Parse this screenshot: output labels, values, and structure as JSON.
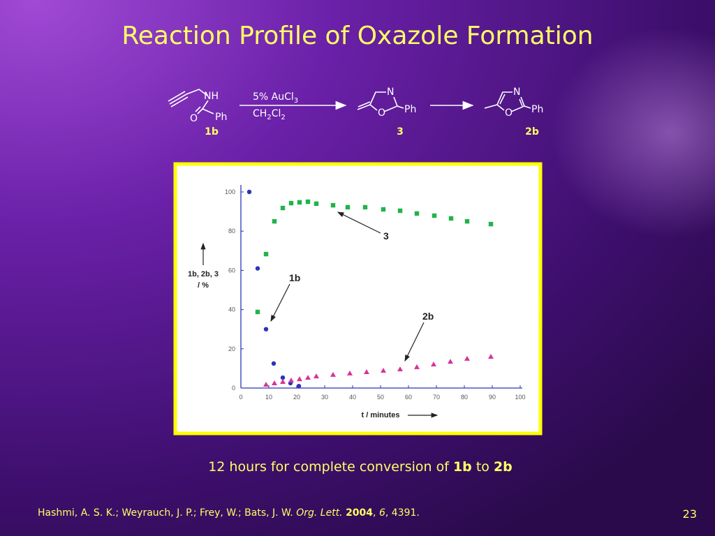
{
  "slide": {
    "title": "Reaction Profile of Oxazole Formation",
    "scheme": {
      "reactant": {
        "nh": "NH",
        "o": "O",
        "ph": "Ph",
        "label": "1b"
      },
      "reagent": [
        "5% AuCl",
        "3"
      ],
      "solvent": [
        "CH",
        "2",
        "Cl",
        "2"
      ],
      "intermediate": {
        "n": "N",
        "o": "O",
        "ph": "Ph",
        "label": "3"
      },
      "product": {
        "n": "N",
        "o": "O",
        "ph": "Ph",
        "label": "2b"
      }
    },
    "caption": [
      "12 hours for complete conversion of ",
      "1b",
      " to ",
      "2b"
    ],
    "citation": [
      "Hashmi, A. S. K.; Weyrauch, J. P.; Frey, W.; Bats, J. W. ",
      "Org. Lett.",
      " ",
      "2004",
      ", ",
      "6",
      ", 4391."
    ],
    "page_number": "23"
  },
  "chart_data": {
    "type": "scatter",
    "x_label": "t / minutes",
    "y_label": [
      "1b, 2b, 3",
      "/ %"
    ],
    "xlim": [
      0,
      100
    ],
    "ylim": [
      0,
      100
    ],
    "xticks": [
      0,
      10,
      20,
      30,
      40,
      50,
      60,
      70,
      80,
      90,
      100
    ],
    "yticks": [
      0,
      20,
      40,
      60,
      80,
      100
    ],
    "series": [
      {
        "name": "1b",
        "color": "#2a35b8",
        "marker": "circle",
        "x": [
          3,
          6,
          9,
          11.75,
          15,
          17.75,
          20.75
        ],
        "values": [
          100,
          61,
          30,
          12.5,
          5.3,
          2.5,
          1
        ]
      },
      {
        "name": "3",
        "color": "#22b24a",
        "marker": "square",
        "x": [
          6,
          9,
          12,
          15,
          18,
          21,
          24,
          27,
          33,
          38.25,
          44.5,
          51,
          57,
          63,
          69.25,
          75.25,
          81,
          89.5
        ],
        "values": [
          38.8,
          68.3,
          85,
          91.8,
          94.3,
          94.7,
          95,
          94,
          93.2,
          92.2,
          92.2,
          91.1,
          90.4,
          89,
          87.9,
          86.5,
          85,
          83.6
        ]
      },
      {
        "name": "2b",
        "color": "#d6339a",
        "marker": "triangle",
        "x": [
          9,
          12,
          15,
          18,
          21,
          24,
          27,
          33,
          39,
          45,
          51,
          57,
          63,
          69,
          75,
          81,
          89.5
        ],
        "values": [
          1.8,
          2.5,
          3.2,
          3.9,
          4.6,
          5.3,
          6,
          6.8,
          7.5,
          8.2,
          8.9,
          9.6,
          10.7,
          12.1,
          13.5,
          15,
          16
        ]
      }
    ]
  }
}
